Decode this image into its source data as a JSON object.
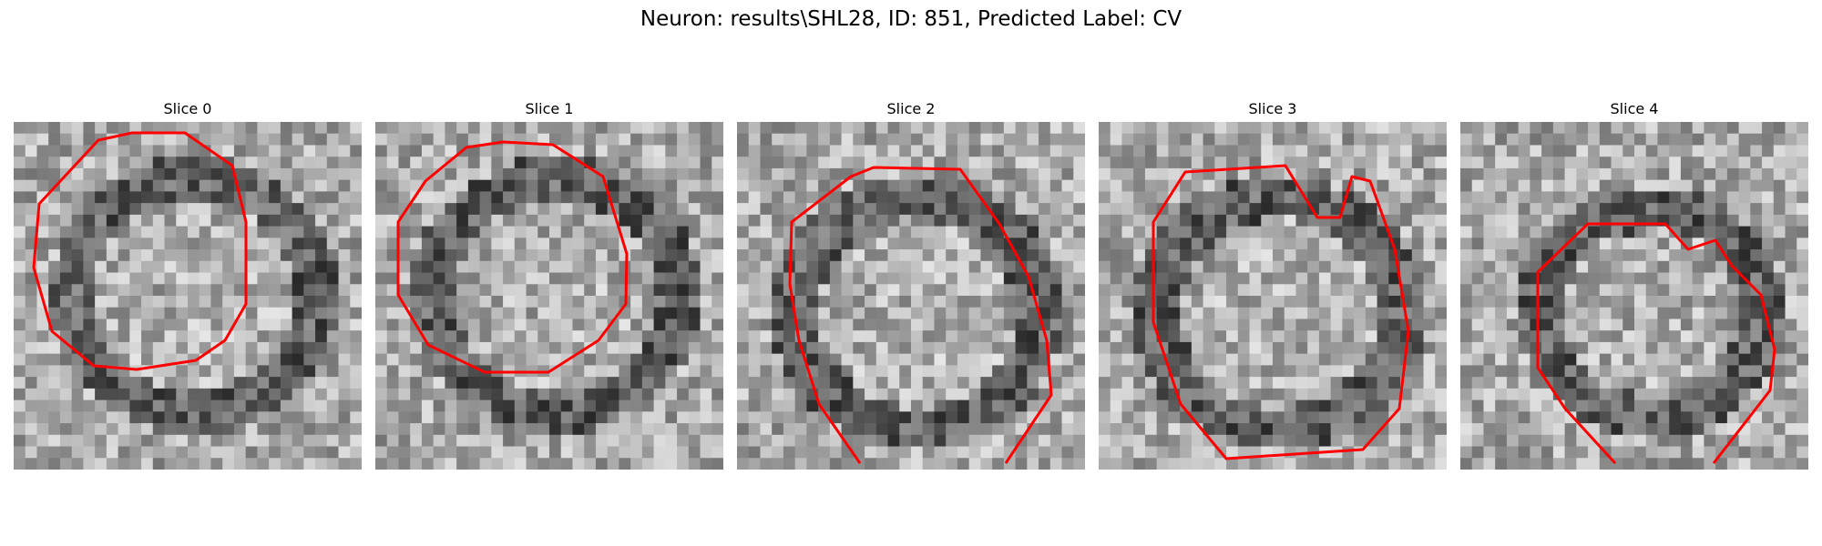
{
  "figure": {
    "title": "Neuron: results\\SHL28, ID: 851, Predicted Label: CV"
  },
  "panels": [
    {
      "title": "Slice 0",
      "shape": "full",
      "seed": 11
    },
    {
      "title": "Slice 1",
      "shape": "full",
      "seed": 23
    },
    {
      "title": "Slice 2",
      "shape": "open",
      "seed": 37
    },
    {
      "title": "Slice 3",
      "shape": "notch",
      "seed": 51
    },
    {
      "title": "Slice 4",
      "shape": "open-small",
      "seed": 67
    }
  ],
  "contour_color": "#ff0000",
  "colormap": "gray"
}
